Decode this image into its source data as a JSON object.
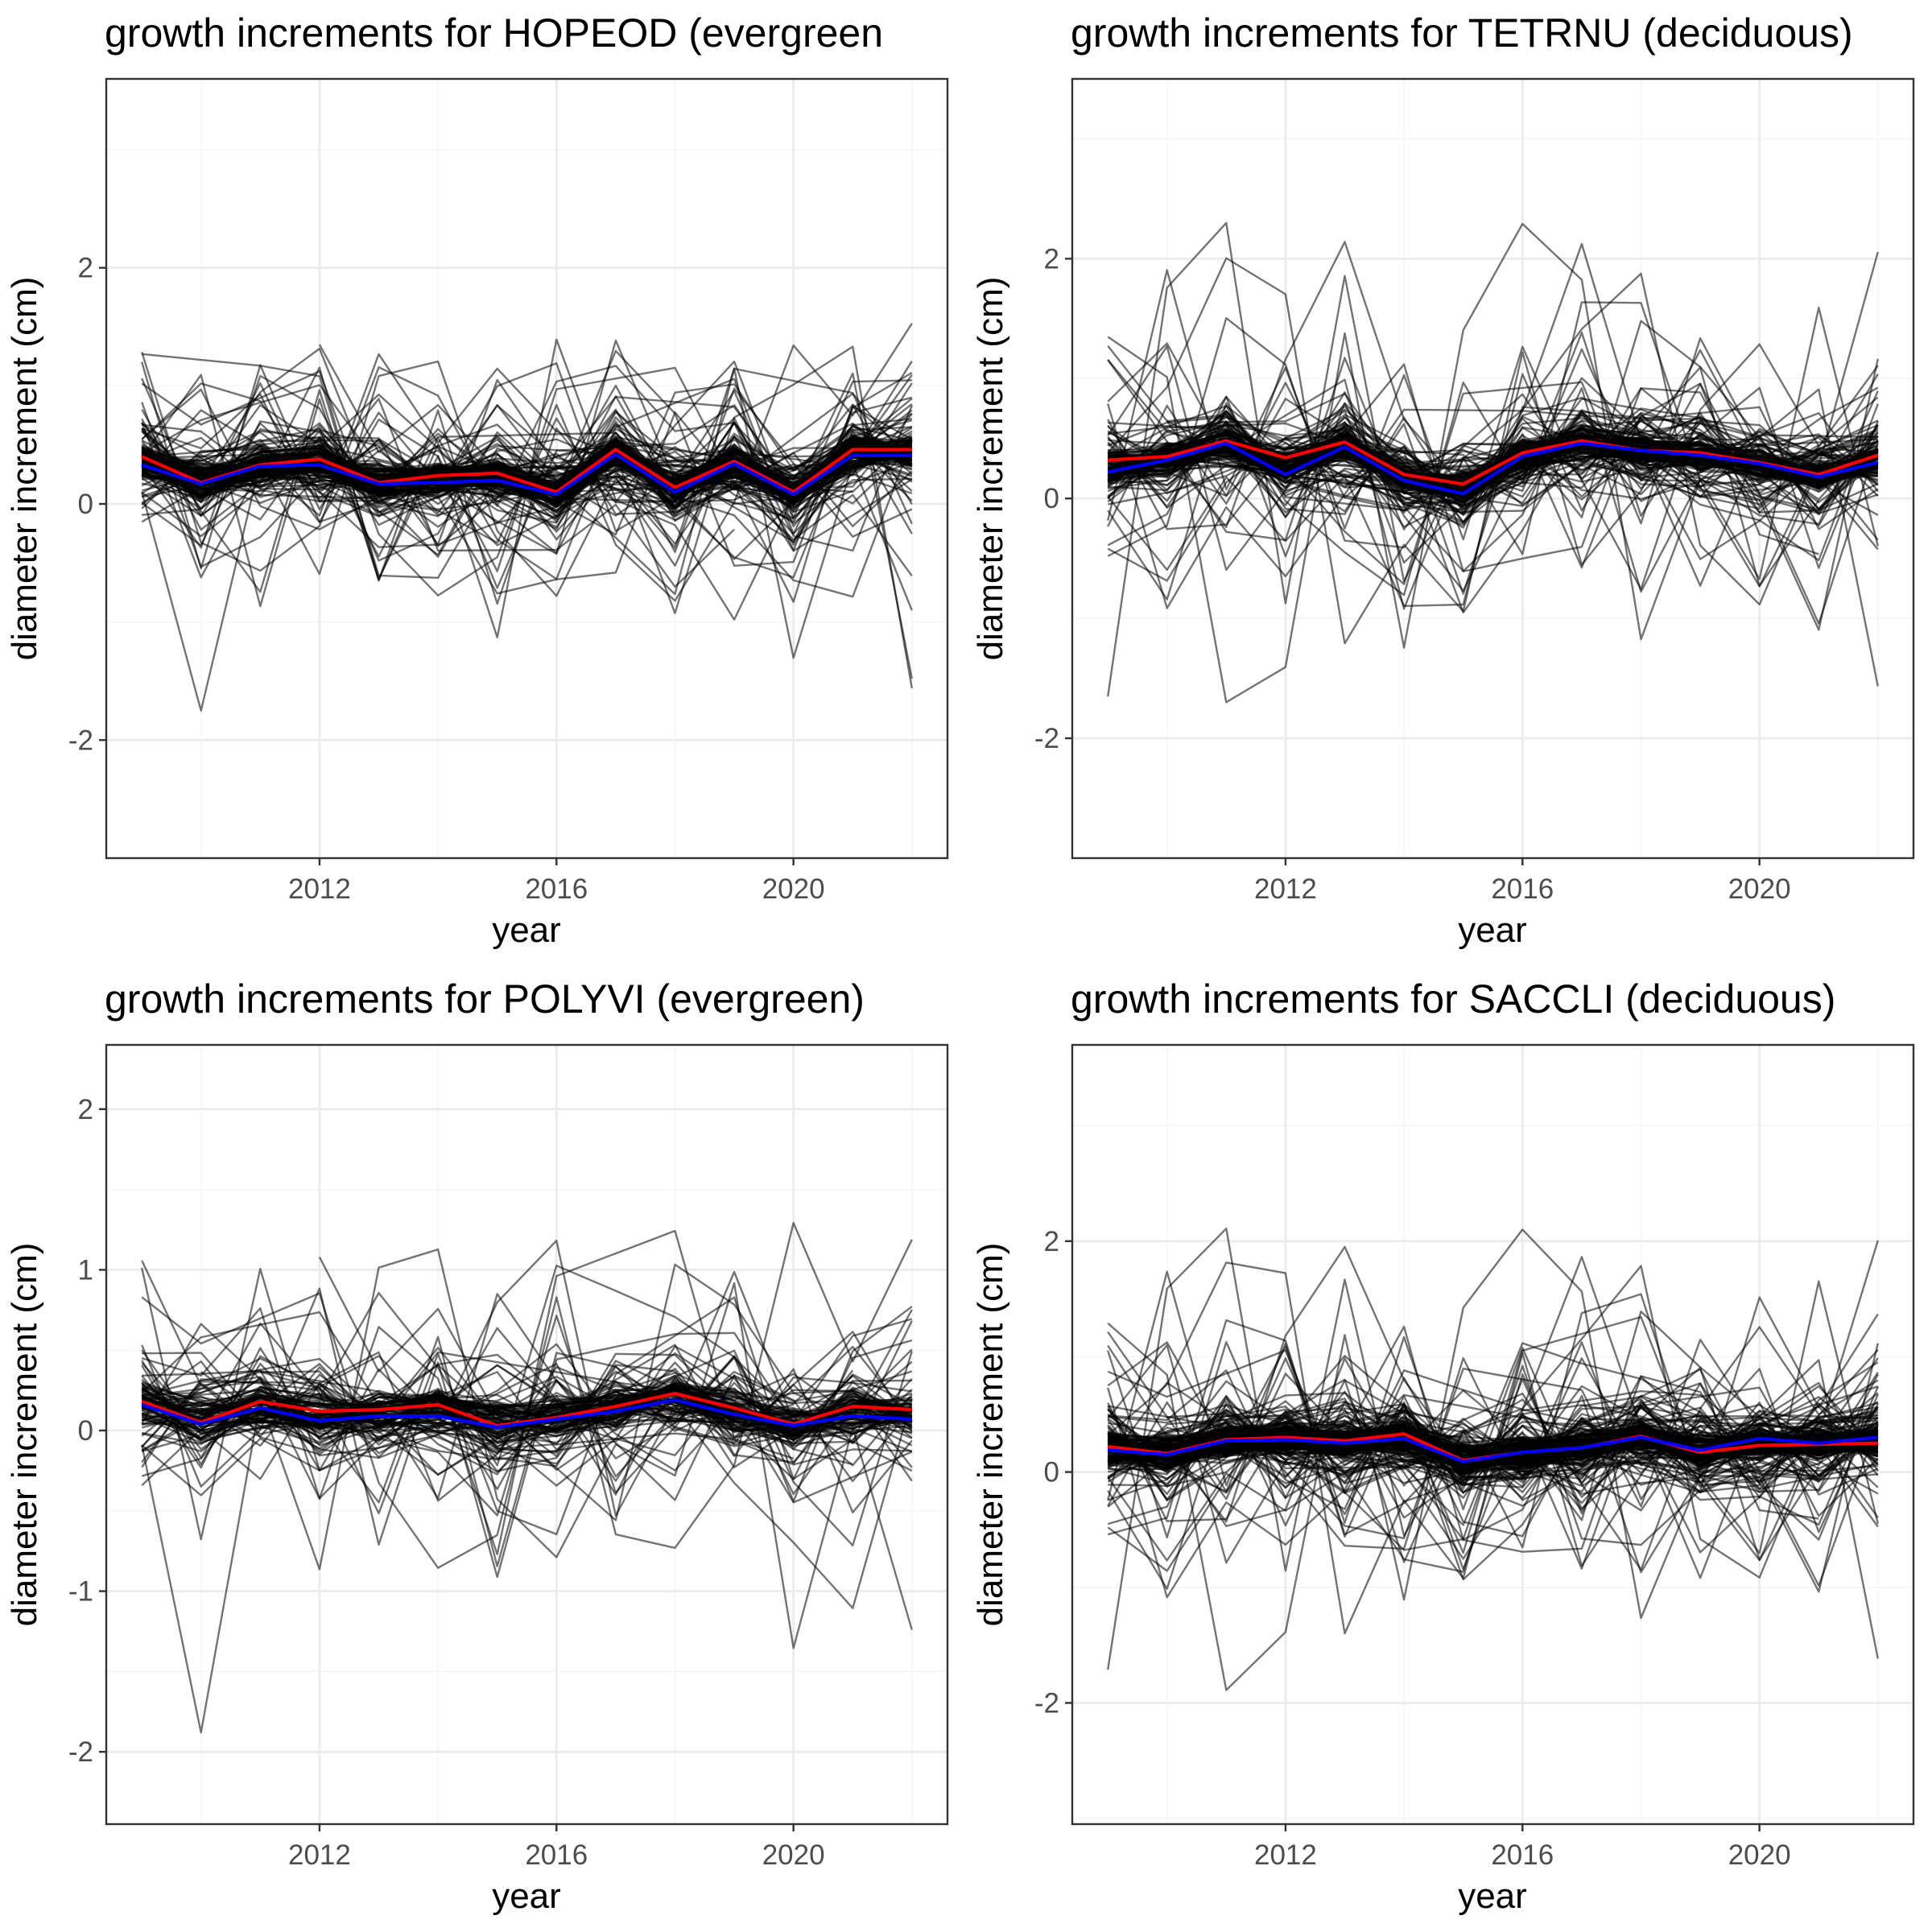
{
  "figure": {
    "background": "#ffffff",
    "panel_border_color": "#333333",
    "major_grid_color": "#ebebeb",
    "minor_grid_color": "#f5f5f5",
    "tree_line_color": "#000000",
    "colors": {
      "mean_line": "#ff0000",
      "median_line": "#0000ff"
    }
  },
  "chart_data": [
    {
      "type": "line",
      "title": "growth increments for HOPEOD (evergreen",
      "xlabel": "year",
      "ylabel": "diameter increment (cm)",
      "grid": true,
      "xlim": [
        2008.4,
        2022.6
      ],
      "ylim": [
        -3.0,
        3.6
      ],
      "x_ticks": [
        2012,
        2016,
        2020
      ],
      "x_tick_labels": [
        "2012",
        "2016",
        "2020"
      ],
      "y_ticks": [
        -2,
        0,
        2
      ],
      "y_tick_labels": [
        "-2",
        "0",
        "2"
      ],
      "x": [
        2009,
        2010,
        2011,
        2012,
        2013,
        2014,
        2015,
        2016,
        2017,
        2018,
        2019,
        2020,
        2021,
        2022
      ],
      "series": [
        {
          "color": "#ff0000",
          "values": [
            0.4,
            0.18,
            0.33,
            0.38,
            0.18,
            0.24,
            0.26,
            0.1,
            0.46,
            0.14,
            0.36,
            0.1,
            0.46,
            0.46
          ]
        },
        {
          "color": "#0000ff",
          "values": [
            0.33,
            0.17,
            0.32,
            0.33,
            0.17,
            0.18,
            0.2,
            0.08,
            0.42,
            0.1,
            0.34,
            0.08,
            0.41,
            0.41
          ]
        }
      ],
      "individual_trees": {
        "count": 160,
        "center_values": [
          0.36,
          0.18,
          0.33,
          0.36,
          0.18,
          0.21,
          0.23,
          0.09,
          0.44,
          0.12,
          0.35,
          0.09,
          0.44,
          0.44
        ],
        "value_range": [
          -2.9,
          3.5
        ],
        "opacity": 0.55
      }
    },
    {
      "type": "line",
      "title": "growth increments for TETRNU (deciduous)",
      "xlabel": "year",
      "ylabel": "diameter increment (cm)",
      "grid": true,
      "xlim": [
        2008.4,
        2022.6
      ],
      "ylim": [
        -3.0,
        3.5
      ],
      "x_ticks": [
        2012,
        2016,
        2020
      ],
      "x_tick_labels": [
        "2012",
        "2016",
        "2020"
      ],
      "y_ticks": [
        -2,
        0,
        2
      ],
      "y_tick_labels": [
        "-2",
        "0",
        "2"
      ],
      "x": [
        2009,
        2010,
        2011,
        2012,
        2013,
        2014,
        2015,
        2016,
        2017,
        2018,
        2019,
        2020,
        2021,
        2022
      ],
      "series": [
        {
          "color": "#ff0000",
          "values": [
            0.32,
            0.35,
            0.48,
            0.34,
            0.47,
            0.2,
            0.12,
            0.38,
            0.48,
            0.4,
            0.38,
            0.3,
            0.2,
            0.36
          ]
        },
        {
          "color": "#0000ff",
          "values": [
            0.22,
            0.32,
            0.46,
            0.2,
            0.43,
            0.15,
            0.04,
            0.35,
            0.46,
            0.4,
            0.36,
            0.29,
            0.18,
            0.3
          ]
        }
      ],
      "individual_trees": {
        "count": 150,
        "center_values": [
          0.27,
          0.33,
          0.47,
          0.27,
          0.45,
          0.17,
          0.08,
          0.36,
          0.47,
          0.4,
          0.37,
          0.29,
          0.19,
          0.33
        ],
        "value_range": [
          -2.8,
          3.4
        ],
        "opacity": 0.55
      }
    },
    {
      "type": "line",
      "title": "growth increments for POLYVI (evergreen)",
      "xlabel": "year",
      "ylabel": "diameter increment (cm)",
      "grid": true,
      "xlim": [
        2008.4,
        2022.6
      ],
      "ylim": [
        -2.45,
        2.4
      ],
      "x_ticks": [
        2012,
        2016,
        2020
      ],
      "x_tick_labels": [
        "2012",
        "2016",
        "2020"
      ],
      "y_ticks": [
        -2,
        -1,
        0,
        1,
        2
      ],
      "y_tick_labels": [
        "-2",
        "-1",
        "0",
        "1",
        "2"
      ],
      "x": [
        2009,
        2010,
        2011,
        2012,
        2013,
        2014,
        2015,
        2016,
        2017,
        2018,
        2019,
        2020,
        2021,
        2022
      ],
      "series": [
        {
          "color": "#ff0000",
          "values": [
            0.18,
            0.05,
            0.18,
            0.12,
            0.13,
            0.16,
            0.03,
            0.08,
            0.15,
            0.23,
            0.14,
            0.04,
            0.15,
            0.13
          ]
        },
        {
          "color": "#0000ff",
          "values": [
            0.16,
            0.04,
            0.14,
            0.06,
            0.09,
            0.09,
            0.02,
            0.07,
            0.12,
            0.19,
            0.1,
            0.03,
            0.09,
            0.07
          ]
        }
      ],
      "individual_trees": {
        "count": 110,
        "center_values": [
          0.17,
          0.05,
          0.16,
          0.09,
          0.11,
          0.13,
          0.03,
          0.08,
          0.14,
          0.21,
          0.12,
          0.04,
          0.12,
          0.1
        ],
        "value_range": [
          -2.25,
          2.2
        ],
        "opacity": 0.55
      }
    },
    {
      "type": "line",
      "title": "growth increments for SACCLI (deciduous)",
      "xlabel": "year",
      "ylabel": "diameter increment (cm)",
      "grid": true,
      "xlim": [
        2008.4,
        2022.6
      ],
      "ylim": [
        -3.05,
        3.7
      ],
      "x_ticks": [
        2012,
        2016,
        2020
      ],
      "x_tick_labels": [
        "2012",
        "2016",
        "2020"
      ],
      "y_ticks": [
        -2,
        0,
        2
      ],
      "y_tick_labels": [
        "-2",
        "0",
        "2"
      ],
      "x": [
        2009,
        2010,
        2011,
        2012,
        2013,
        2014,
        2015,
        2016,
        2017,
        2018,
        2019,
        2020,
        2021,
        2022
      ],
      "series": [
        {
          "color": "#ff0000",
          "values": [
            0.22,
            0.16,
            0.28,
            0.3,
            0.27,
            0.33,
            0.1,
            0.17,
            0.21,
            0.31,
            0.17,
            0.23,
            0.24,
            0.25
          ]
        },
        {
          "color": "#0000ff",
          "values": [
            0.19,
            0.15,
            0.27,
            0.28,
            0.25,
            0.29,
            0.09,
            0.17,
            0.21,
            0.3,
            0.19,
            0.29,
            0.25,
            0.3
          ]
        }
      ],
      "individual_trees": {
        "count": 190,
        "center_values": [
          0.21,
          0.16,
          0.28,
          0.29,
          0.26,
          0.31,
          0.1,
          0.17,
          0.21,
          0.31,
          0.18,
          0.26,
          0.25,
          0.28
        ],
        "value_range": [
          -2.9,
          3.4
        ],
        "opacity": 0.55
      }
    }
  ]
}
